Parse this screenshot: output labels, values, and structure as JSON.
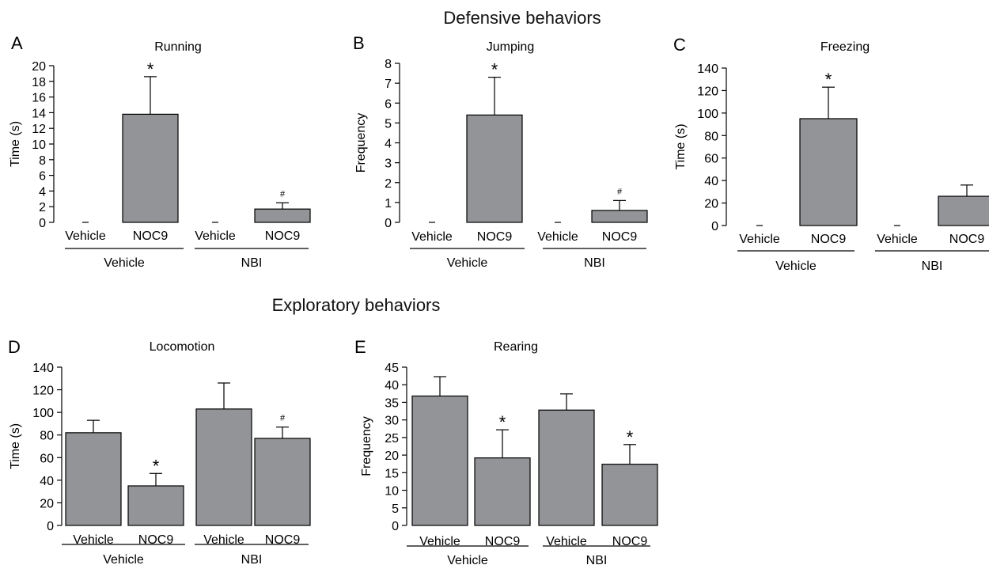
{
  "headings": {
    "defensive": "Defensive behaviors",
    "exploratory": "Exploratory behaviors"
  },
  "colors": {
    "bar_fill": "#939498",
    "axis": "#000000"
  },
  "chart_data": [
    {
      "type": "bar",
      "panel": "A",
      "title": "Running",
      "ylabel": "Time (s)",
      "xlabel": "",
      "ylim": [
        0,
        20
      ],
      "yticks": [
        0,
        2,
        4,
        6,
        8,
        10,
        12,
        14,
        16,
        18,
        20
      ],
      "categories": [
        "Vehicle",
        "NOC9",
        "Vehicle",
        "NOC9"
      ],
      "groups": [
        {
          "label": "Vehicle"
        },
        {
          "label": "NBI"
        }
      ],
      "values": [
        0,
        13.8,
        0,
        1.7
      ],
      "errors": [
        0,
        4.8,
        0,
        0.8
      ],
      "markers": [
        "",
        "*",
        "",
        "#"
      ]
    },
    {
      "type": "bar",
      "panel": "B",
      "title": "Jumping",
      "ylabel": "Frequency",
      "xlabel": "",
      "ylim": [
        0,
        8
      ],
      "yticks": [
        0,
        1,
        2,
        3,
        4,
        5,
        6,
        7,
        8
      ],
      "categories": [
        "Vehicle",
        "NOC9",
        "Vehicle",
        "NOC9"
      ],
      "groups": [
        {
          "label": "Vehicle"
        },
        {
          "label": "NBI"
        }
      ],
      "values": [
        0,
        5.4,
        0,
        0.6
      ],
      "errors": [
        0,
        1.9,
        0,
        0.5
      ],
      "markers": [
        "",
        "*",
        "",
        "#"
      ]
    },
    {
      "type": "bar",
      "panel": "C",
      "title": "Freezing",
      "ylabel": "Time (s)",
      "xlabel": "",
      "ylim": [
        0,
        140
      ],
      "yticks": [
        0,
        20,
        40,
        60,
        80,
        100,
        120,
        140
      ],
      "categories": [
        "Vehicle",
        "NOC9",
        "Vehicle",
        "NOC9"
      ],
      "groups": [
        {
          "label": "Vehicle"
        },
        {
          "label": "NBI"
        }
      ],
      "values": [
        0,
        95,
        0,
        26
      ],
      "errors": [
        0,
        28,
        0,
        10
      ],
      "markers": [
        "",
        "*",
        "",
        ""
      ]
    },
    {
      "type": "bar",
      "panel": "D",
      "title": "Locomotion",
      "ylabel": "Time (s)",
      "xlabel": "",
      "ylim": [
        0,
        140
      ],
      "yticks": [
        0,
        20,
        40,
        60,
        80,
        100,
        120,
        140
      ],
      "categories": [
        "Vehicle",
        "NOC9",
        "Vehicle",
        "NOC9"
      ],
      "groups": [
        {
          "label": "Vehicle"
        },
        {
          "label": "NBI"
        }
      ],
      "values": [
        82,
        35,
        103,
        77
      ],
      "errors": [
        11,
        11,
        23,
        10
      ],
      "markers": [
        "",
        "*",
        "",
        "#"
      ]
    },
    {
      "type": "bar",
      "panel": "E",
      "title": "Rearing",
      "ylabel": "Frequency",
      "xlabel": "",
      "ylim": [
        0,
        45
      ],
      "yticks": [
        0,
        5,
        10,
        15,
        20,
        25,
        30,
        35,
        40,
        45
      ],
      "categories": [
        "Vehicle",
        "NOC9",
        "Vehicle",
        "NOC9"
      ],
      "groups": [
        {
          "label": "Vehicle"
        },
        {
          "label": "NBI"
        }
      ],
      "values": [
        36.8,
        19.2,
        32.8,
        17.4
      ],
      "errors": [
        5.5,
        8,
        4.6,
        5.6
      ],
      "markers": [
        "",
        "*",
        "",
        "*"
      ]
    }
  ]
}
